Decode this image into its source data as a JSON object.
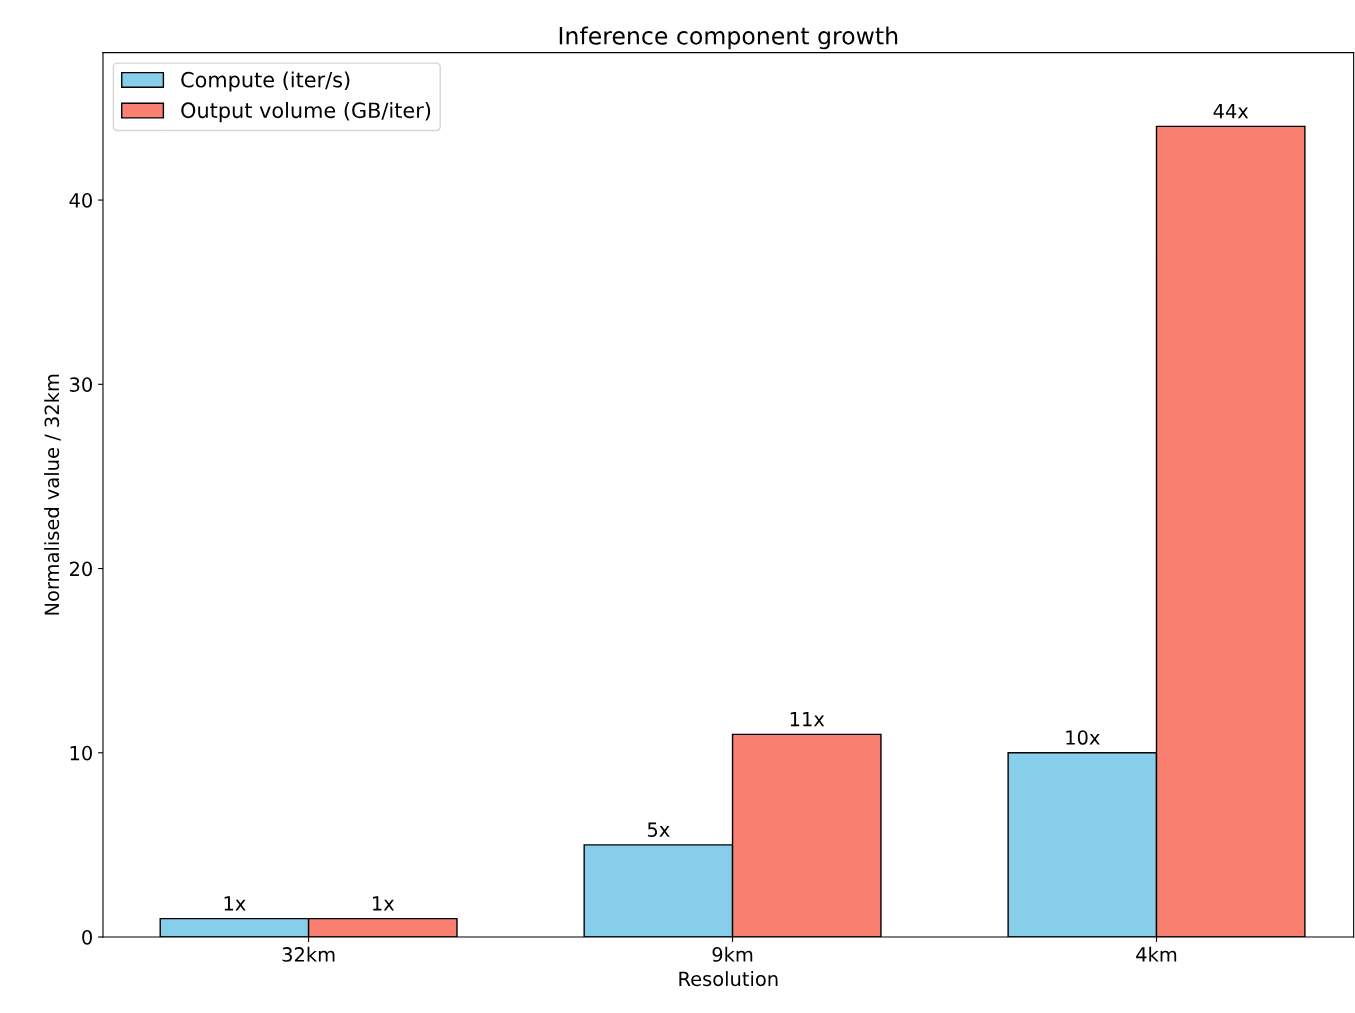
{
  "chart_data": {
    "type": "bar",
    "title": "Inference component growth",
    "xlabel": "Resolution",
    "ylabel": "Normalised value / 32km",
    "categories": [
      "32km",
      "9km",
      "4km"
    ],
    "series": [
      {
        "name": "Compute (iter/s)",
        "color": "#87ceeb",
        "values": [
          1,
          5,
          10
        ],
        "value_labels": [
          "1x",
          "5x",
          "10x"
        ]
      },
      {
        "name": "Output volume (GB/iter)",
        "color": "#fa8072",
        "values": [
          1,
          11,
          44
        ],
        "value_labels": [
          "1x",
          "11x",
          "44x"
        ]
      }
    ],
    "ylim": [
      0,
      48
    ],
    "yticks": [
      0,
      10,
      20,
      30,
      40
    ],
    "grid": false,
    "legend": "top left"
  }
}
